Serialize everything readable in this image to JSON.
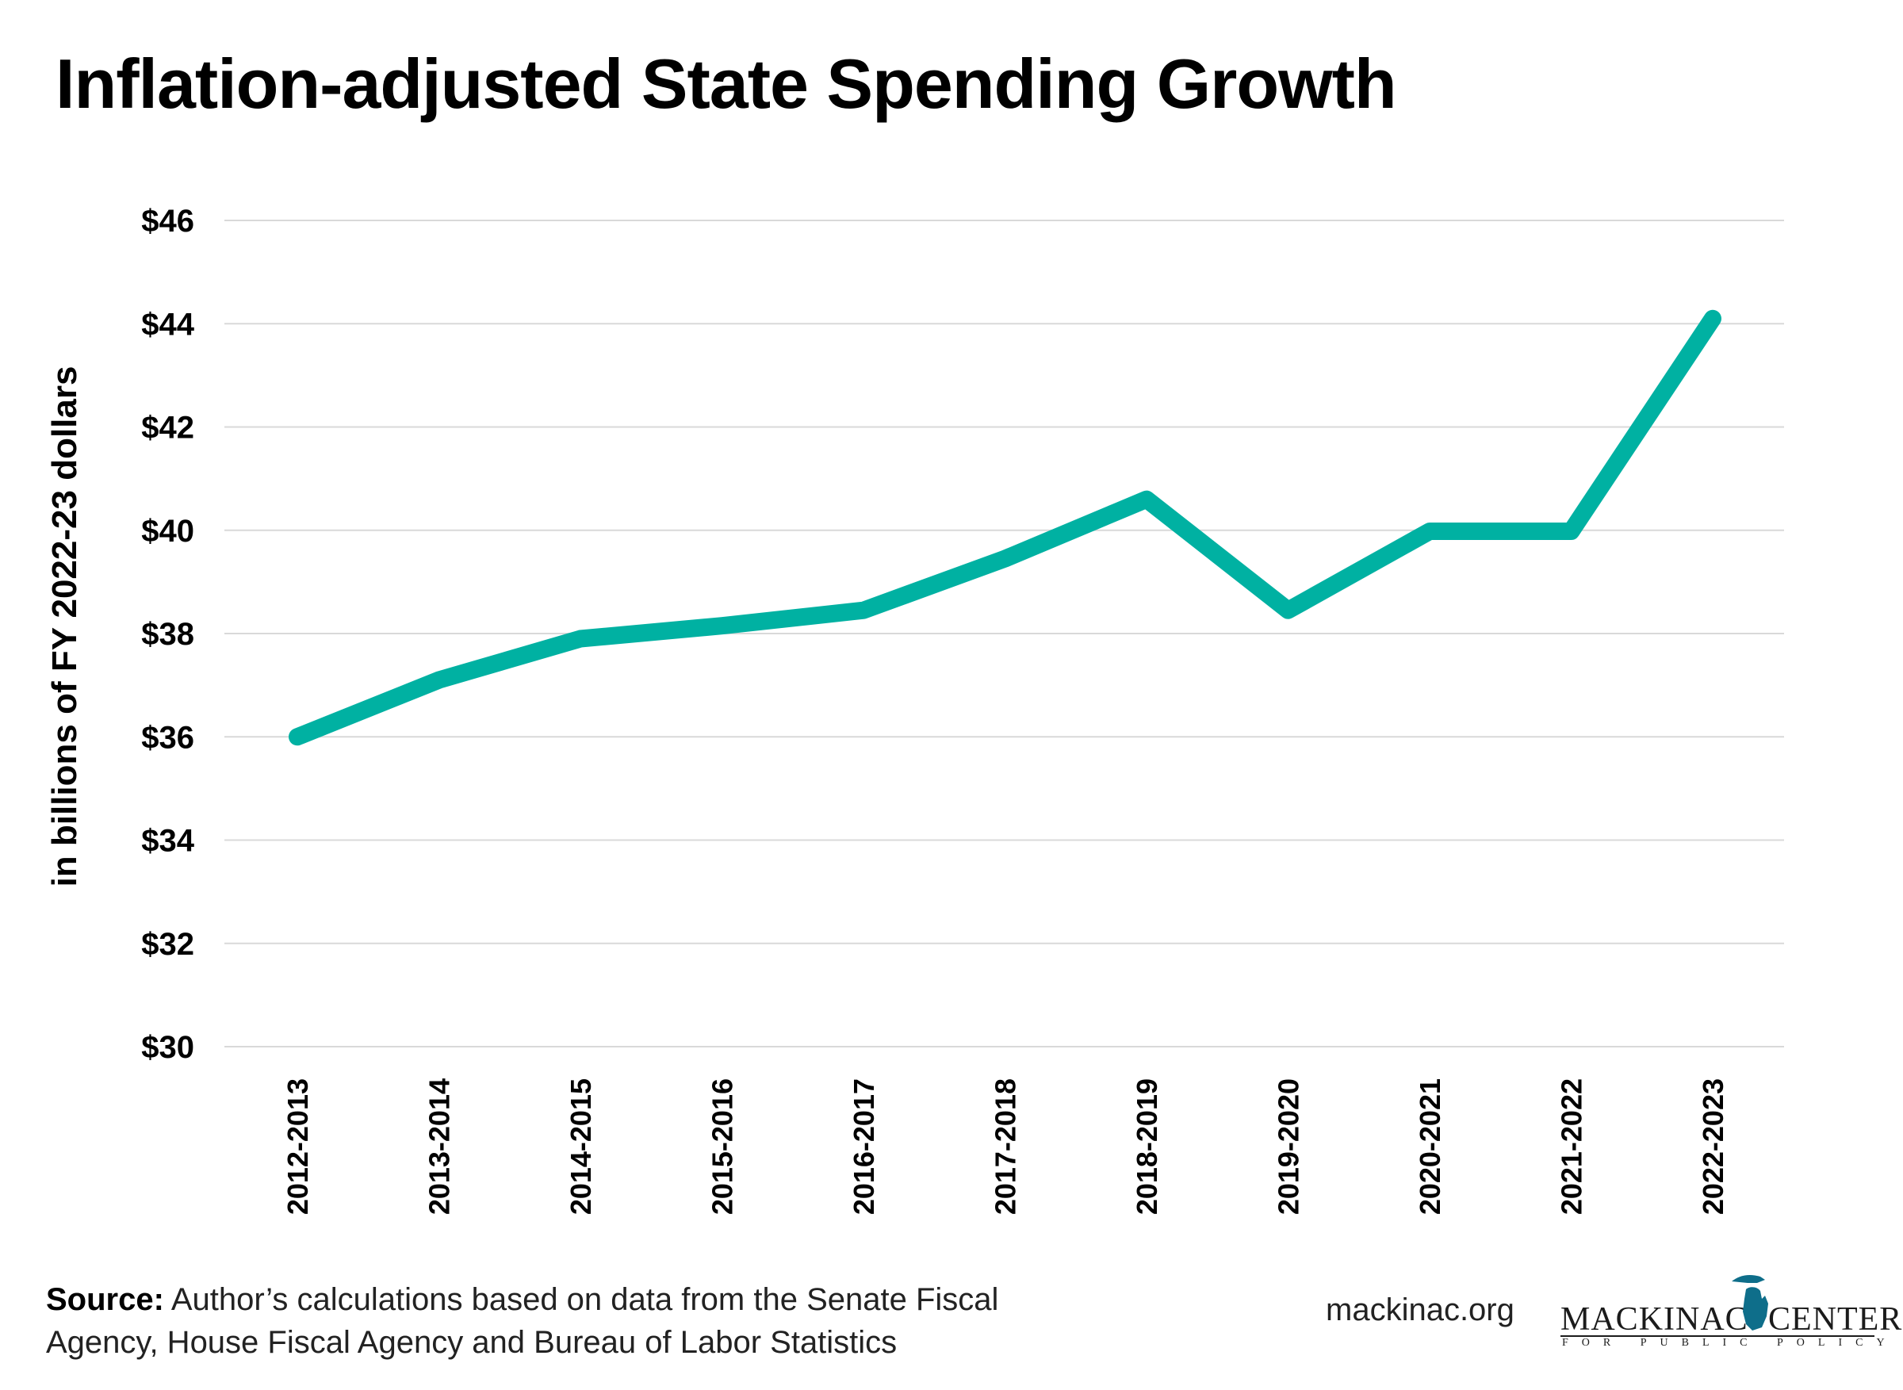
{
  "chart_data": {
    "type": "line",
    "title": "Inflation-adjusted State Spending Growth",
    "ylabel": "in billions of FY 2022-23 dollars",
    "xlabel": "",
    "categories": [
      "2012-2013",
      "2013-2014",
      "2014-2015",
      "2015-2016",
      "2016-2017",
      "2017-2018",
      "2018-2019",
      "2019-2020",
      "2020-2021",
      "2021-2022",
      "2022-2023"
    ],
    "series": [
      {
        "values": [
          36.0,
          37.1,
          37.9,
          38.15,
          38.45,
          39.45,
          40.6,
          38.45,
          39.98,
          39.98,
          44.1
        ]
      }
    ],
    "ylim": [
      30,
      46
    ],
    "yticks": [
      30,
      32,
      34,
      36,
      38,
      40,
      42,
      44,
      46
    ],
    "ytick_labels": [
      "$30",
      "$32",
      "$34",
      "$36",
      "$38",
      "$40",
      "$42",
      "$44",
      "$46"
    ],
    "grid": true,
    "line_color": "#00b1a2",
    "grid_color": "#d9d9d9"
  },
  "footer": {
    "source_label": "Source:",
    "source_text": "Author’s calculations based on data from the Senate Fiscal Agency, House Fiscal Agency and Bureau of Labor Statistics",
    "website": "mackinac.org"
  },
  "logo": {
    "left_word": "MACKINAC",
    "right_word": "CENTER",
    "sub_text": "FOR PUBLIC POLICY",
    "icon": "michigan-map-icon",
    "color": "#0e6e8a"
  }
}
